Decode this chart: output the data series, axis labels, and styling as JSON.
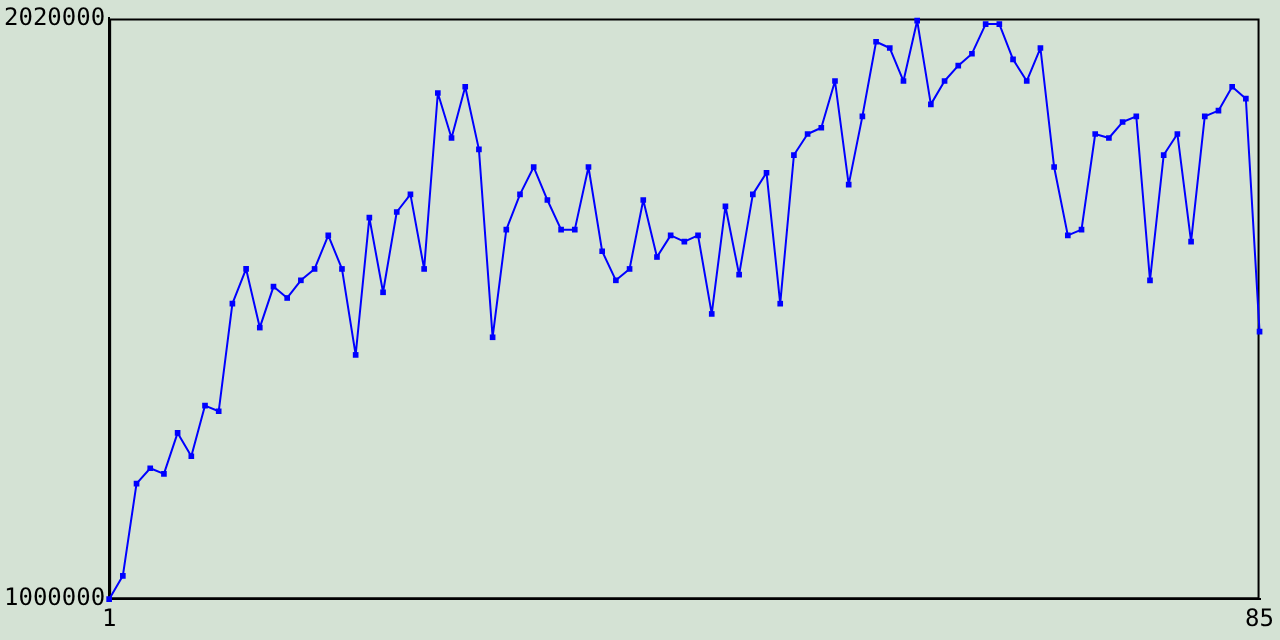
{
  "chart_data": {
    "type": "line",
    "x": [
      1,
      2,
      3,
      4,
      5,
      6,
      7,
      8,
      9,
      10,
      11,
      12,
      13,
      14,
      15,
      16,
      17,
      18,
      19,
      20,
      21,
      22,
      23,
      24,
      25,
      26,
      27,
      28,
      29,
      30,
      31,
      32,
      33,
      34,
      35,
      36,
      37,
      38,
      39,
      40,
      41,
      42,
      43,
      44,
      45,
      46,
      47,
      48,
      49,
      50,
      51,
      52,
      53,
      54,
      55,
      56,
      57,
      58,
      59,
      60,
      61,
      62,
      63,
      64,
      65,
      66,
      67,
      68,
      69,
      70,
      71,
      72,
      73,
      74,
      75,
      76,
      77,
      78,
      79,
      80,
      81,
      82,
      83,
      84,
      85
    ],
    "series": [
      {
        "color": "#0000ff",
        "values": [
          1000000,
          1041000,
          1203000,
          1230000,
          1220000,
          1292000,
          1251000,
          1340000,
          1330000,
          1519000,
          1580000,
          1477000,
          1549000,
          1529000,
          1560000,
          1580000,
          1639000,
          1580000,
          1429000,
          1670000,
          1539000,
          1680000,
          1711000,
          1580000,
          1889000,
          1810000,
          1900000,
          1790000,
          1460000,
          1649000,
          1711000,
          1759000,
          1701000,
          1649000,
          1649000,
          1759000,
          1611000,
          1560000,
          1580000,
          1701000,
          1601000,
          1639000,
          1628000,
          1639000,
          1501000,
          1690000,
          1570000,
          1711000,
          1749000,
          1519000,
          1780000,
          1817000,
          1828000,
          1910000,
          1728000,
          1848000,
          1979000,
          1968000,
          1910000,
          2016000,
          1869000,
          1910000,
          1937000,
          1958000,
          2010000,
          2010000,
          1948000,
          1910000,
          1968000,
          1759000,
          1639000,
          1649000,
          1817000,
          1810000,
          1838000,
          1848000,
          1560000,
          1780000,
          1817000,
          1628000,
          1848000,
          1858000,
          1900000,
          1879000,
          1470000
        ]
      }
    ],
    "xlim": [
      1,
      85
    ],
    "xticks": [
      1,
      85
    ],
    "ylim": [
      1000000,
      2020000
    ],
    "yticks": [
      1000000,
      2020000
    ],
    "grid": false,
    "legend": false,
    "marker": "square",
    "line_style": "solid"
  }
}
